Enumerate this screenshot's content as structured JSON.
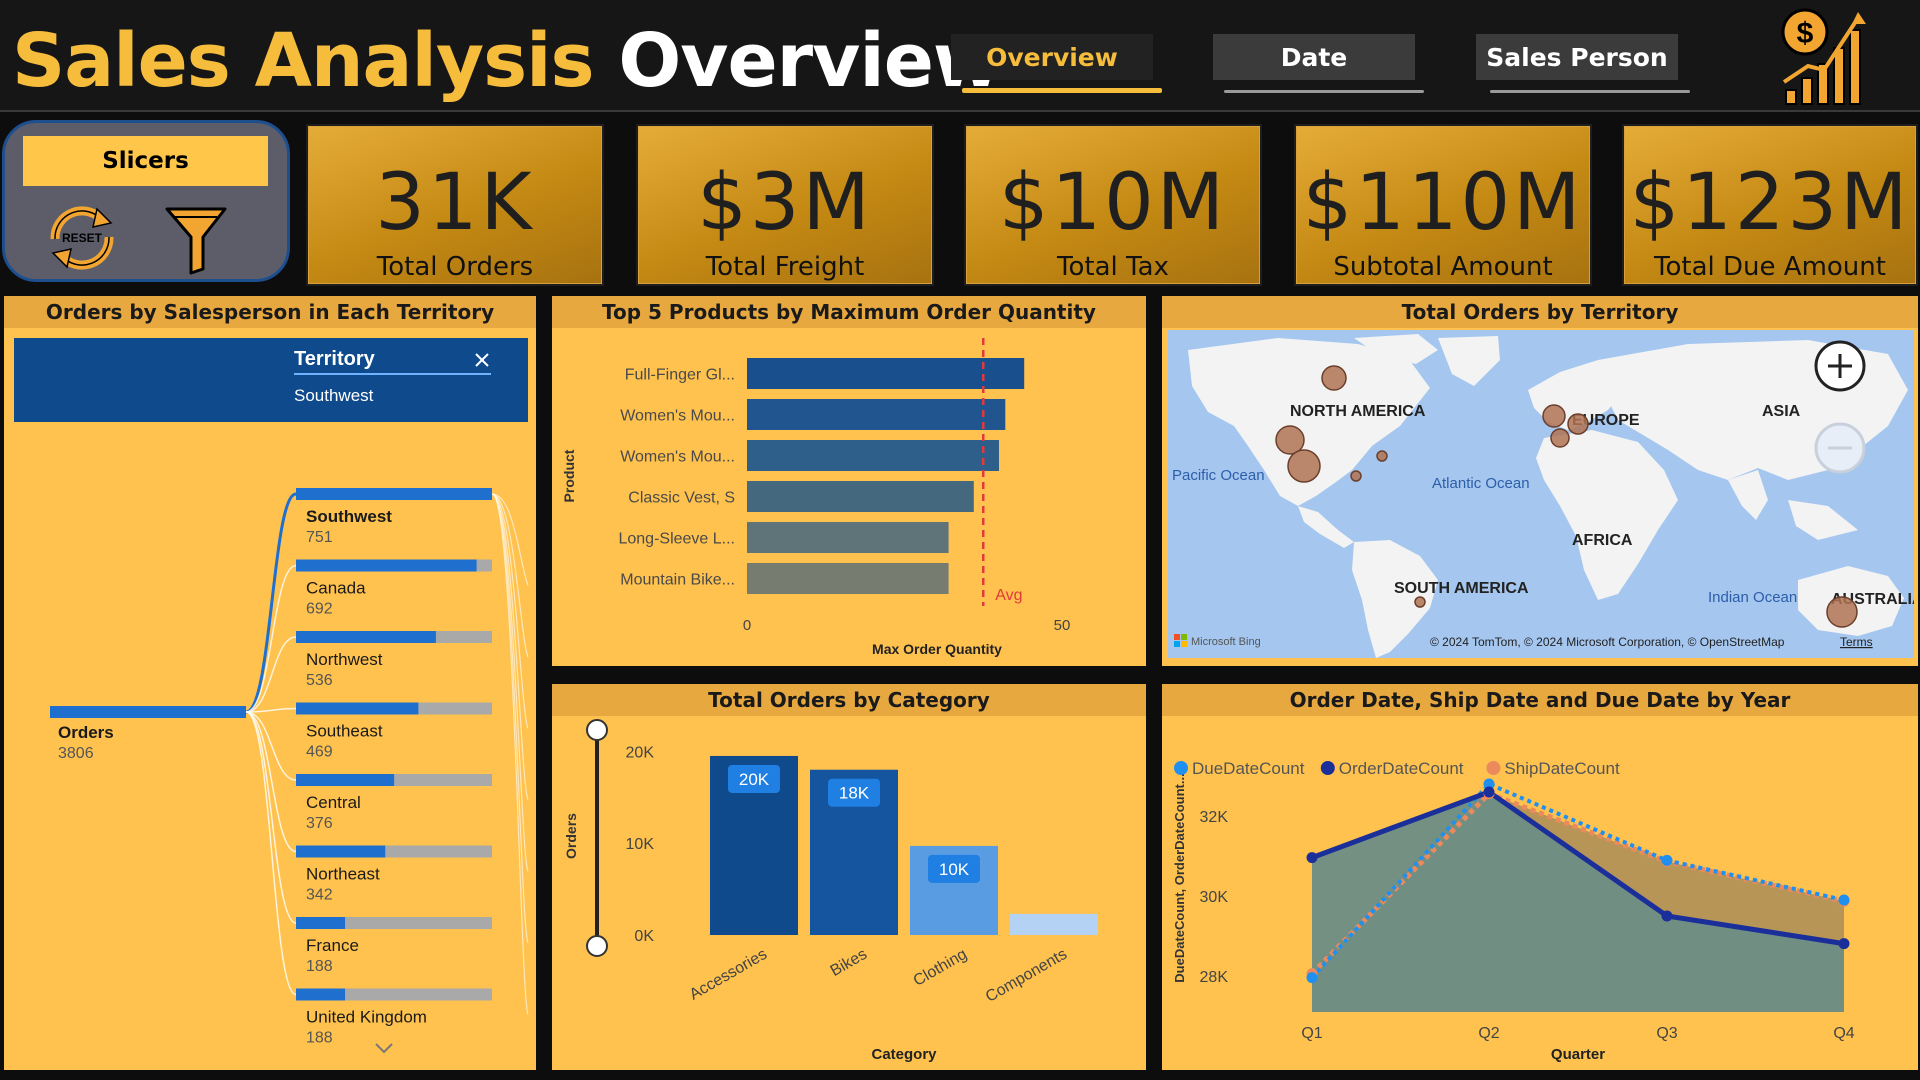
{
  "header": {
    "title_part1": "Sales Analysis",
    "title_part2": "Overview",
    "nav": [
      {
        "label": "Overview",
        "active": true
      },
      {
        "label": "Date",
        "active": false
      },
      {
        "label": "Sales Person",
        "active": false
      }
    ],
    "logo_icon": "dollar-growth-chart-icon"
  },
  "slicers": {
    "label": "Slicers",
    "reset_label": "RESET",
    "reset_icon": "reset-icon",
    "filter_icon": "filter-icon"
  },
  "kpis": [
    {
      "value": "31K",
      "label": "Total Orders"
    },
    {
      "value": "$3M",
      "label": "Total Freight"
    },
    {
      "value": "$10M",
      "label": "Total  Tax"
    },
    {
      "value": "$110M",
      "label": "Subtotal Amount"
    },
    {
      "value": "$123M",
      "label": "Total Due Amount"
    }
  ],
  "decomp_tree": {
    "title": "Orders by Salesperson in Each Territory",
    "filter_header": "Territory",
    "filter_value": "Southwest",
    "root": {
      "label": "Orders",
      "value": 3806
    },
    "items": [
      {
        "label": "Southwest",
        "value": 751
      },
      {
        "label": "Canada",
        "value": 692
      },
      {
        "label": "Northwest",
        "value": 536
      },
      {
        "label": "Southeast",
        "value": 469
      },
      {
        "label": "Central",
        "value": 376
      },
      {
        "label": "Northeast",
        "value": 342
      },
      {
        "label": "France",
        "value": 188
      },
      {
        "label": "United Kingdom",
        "value": 188
      }
    ],
    "colors": {
      "bar": "#1f6fcf",
      "track": "#a9a9a9",
      "header": "#0f4a8c"
    }
  },
  "map": {
    "title": "Total Orders by Territory",
    "labels": {
      "north_america": "NORTH AMERICA",
      "europe": "EUROPE",
      "asia": "ASIA",
      "africa": "AFRICA",
      "south_america": "SOUTH AMERICA",
      "australia": "AUSTRALIA",
      "pacific": "Pacific Ocean",
      "atlantic": "Atlantic Ocean",
      "indian": "Indian Ocean"
    },
    "attribution": "© 2024 TomTom, © 2024 Microsoft Corporation, © OpenStreetMap",
    "terms": "Terms",
    "brand": "Microsoft Bing",
    "zoom_in_icon": "zoom-in-icon",
    "zoom_out_icon": "zoom-out-icon"
  },
  "chart_data": [
    {
      "type": "bar",
      "orientation": "horizontal",
      "title": "Top 5 Products by Maximum Order Quantity",
      "xlabel": "Max Order Quantity",
      "ylabel": "Product",
      "categories": [
        "Full-Finger Gl...",
        "Women's Mou...",
        "Women's Mou...",
        "Classic Vest, S",
        "Long-Sleeve L...",
        "Mountain Bike..."
      ],
      "values": [
        44,
        41,
        40,
        36,
        32,
        32
      ],
      "xlim": [
        0,
        50
      ],
      "xticks": [
        "0",
        "50"
      ],
      "reference_line": {
        "label": "Avg",
        "value": 37.5
      },
      "colors": [
        "#1a4f8e",
        "#215590",
        "#2e5e8a",
        "#44697f",
        "#5f7478",
        "#767c70"
      ]
    },
    {
      "type": "bar",
      "title": "Total Orders by Category",
      "xlabel": "Category",
      "ylabel": "Orders",
      "categories": [
        "Accessories",
        "Bikes",
        "Clothing",
        "Components"
      ],
      "values": [
        19500,
        18000,
        9700,
        2300
      ],
      "data_labels": [
        "20K",
        "18K",
        "10K",
        ""
      ],
      "yticks": [
        "0K",
        "10K",
        "20K"
      ],
      "ylim": [
        0,
        22000
      ],
      "colors": [
        "#0f4a8c",
        "#1555a0",
        "#5a9ce2",
        "#b4d2f4"
      ]
    },
    {
      "type": "area",
      "title": "Order Date, Ship Date and Due Date by Year",
      "xlabel": "Quarter",
      "ylabel": "DueDateCount, OrderDateCount...",
      "categories": [
        "Q1",
        "Q2",
        "Q3",
        "Q4"
      ],
      "yticks": [
        "28K",
        "30K",
        "32K"
      ],
      "ylim": [
        27000,
        33500
      ],
      "series": [
        {
          "name": "DueDateCount",
          "values": [
            27960,
            32800,
            30890,
            29900
          ],
          "color": "#1f8ff0"
        },
        {
          "name": "OrderDateCount",
          "values": [
            30960,
            32600,
            29500,
            28810
          ],
          "color": "#1b2f9a"
        },
        {
          "name": "ShipDateCount",
          "values": [
            28060,
            32560,
            30860,
            29870
          ],
          "color": "#ec8a5c"
        }
      ]
    }
  ]
}
